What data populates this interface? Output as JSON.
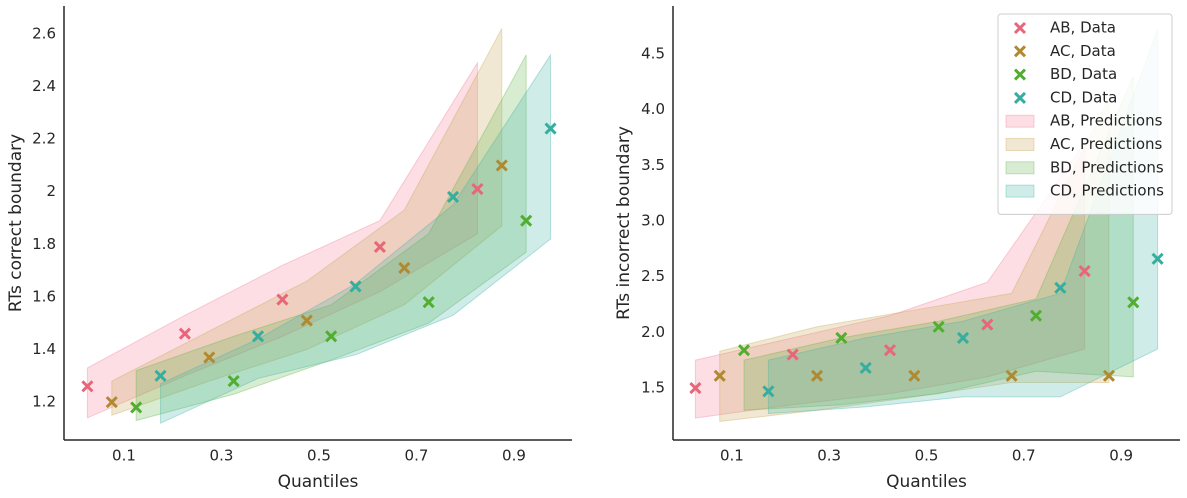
{
  "chart_data": [
    {
      "type": "scatter",
      "xlabel": "Quantiles",
      "ylabel": "RTs correct boundary",
      "xlim": [
        -0.023,
        1.019
      ],
      "ylim": [
        1.056,
        2.706
      ],
      "xticks": [
        0.1,
        0.3,
        0.5,
        0.7,
        0.9
      ],
      "yticks": [
        1.2,
        1.4,
        1.6,
        1.8,
        2.0,
        2.2,
        2.4,
        2.6
      ],
      "series": [
        {
          "color": "#e8667a",
          "x": [
            0.025,
            0.225,
            0.425,
            0.625,
            0.825
          ],
          "values": [
            1.26,
            1.46,
            1.59,
            1.79,
            2.01
          ]
        },
        {
          "color": "#b08a30",
          "x": [
            0.075,
            0.275,
            0.475,
            0.675,
            0.875
          ],
          "values": [
            1.2,
            1.37,
            1.51,
            1.71,
            2.1
          ]
        },
        {
          "color": "#52ae31",
          "x": [
            0.125,
            0.325,
            0.525,
            0.725,
            0.925
          ],
          "values": [
            1.18,
            1.28,
            1.45,
            1.58,
            1.89
          ]
        },
        {
          "color": "#35aea0",
          "x": [
            0.175,
            0.375,
            0.575,
            0.775,
            0.975
          ],
          "values": [
            1.3,
            1.45,
            1.64,
            1.98,
            2.24
          ]
        }
      ],
      "bands": [
        {
          "color": "#f27b95",
          "x": [
            0.025,
            0.225,
            0.425,
            0.625,
            0.825
          ],
          "lower": [
            1.14,
            1.3,
            1.45,
            1.62,
            1.84
          ],
          "upper": [
            1.33,
            1.53,
            1.72,
            1.89,
            2.49
          ]
        },
        {
          "color": "#c7a54f",
          "x": [
            0.075,
            0.275,
            0.475,
            0.675,
            0.875
          ],
          "lower": [
            1.15,
            1.28,
            1.4,
            1.57,
            1.87
          ],
          "upper": [
            1.28,
            1.47,
            1.66,
            1.93,
            2.62
          ]
        },
        {
          "color": "#5fb548",
          "x": [
            0.125,
            0.325,
            0.525,
            0.725,
            0.925
          ],
          "lower": [
            1.13,
            1.23,
            1.36,
            1.5,
            1.77
          ],
          "upper": [
            1.32,
            1.45,
            1.57,
            1.84,
            2.52
          ]
        },
        {
          "color": "#3fb3a6",
          "x": [
            0.175,
            0.375,
            0.575,
            0.775,
            0.975
          ],
          "lower": [
            1.12,
            1.29,
            1.38,
            1.53,
            1.82
          ],
          "upper": [
            1.27,
            1.44,
            1.65,
            1.95,
            2.52
          ]
        }
      ]
    },
    {
      "type": "scatter",
      "xlabel": "Quantiles",
      "ylabel": "RTs incorrect boundary",
      "xlim": [
        -0.021,
        1.021
      ],
      "ylim": [
        1.033,
        4.931
      ],
      "xticks": [
        0.1,
        0.3,
        0.5,
        0.7,
        0.9
      ],
      "yticks": [
        1.5,
        {
          "value": 2,
          "label": "2.0"
        },
        2.5,
        {
          "value": 3,
          "label": "3.0"
        },
        3.5,
        {
          "value": 4,
          "label": "4.0"
        },
        4.5
      ],
      "legend": "upper right",
      "series": [
        {
          "name": "AB, Data",
          "color": "#e8667a",
          "x": [
            0.025,
            0.225,
            0.425,
            0.625,
            0.825
          ],
          "values": [
            1.5,
            1.8,
            1.84,
            2.07,
            2.55
          ]
        },
        {
          "name": "AC, Data",
          "color": "#b08a30",
          "x": [
            0.075,
            0.275,
            0.475,
            0.675,
            0.875
          ],
          "values": [
            1.61,
            1.61,
            1.61,
            1.61,
            1.61
          ]
        },
        {
          "name": "BD, Data",
          "color": "#52ae31",
          "x": [
            0.125,
            0.325,
            0.525,
            0.725,
            0.925
          ],
          "values": [
            1.84,
            1.95,
            2.05,
            2.15,
            2.27
          ]
        },
        {
          "name": "CD, Data",
          "color": "#35aea0",
          "x": [
            0.175,
            0.375,
            0.575,
            0.775,
            0.975
          ],
          "values": [
            1.47,
            1.68,
            1.95,
            2.4,
            2.66
          ]
        }
      ],
      "bands": [
        {
          "name": "AB, Predictions",
          "color": "#f27b95",
          "x": [
            0.025,
            0.225,
            0.425,
            0.625,
            0.825
          ],
          "lower": [
            1.23,
            1.35,
            1.45,
            1.6,
            1.85
          ],
          "upper": [
            1.75,
            1.95,
            2.15,
            2.45,
            3.7
          ]
        },
        {
          "name": "AC, Predictions",
          "color": "#c7a54f",
          "x": [
            0.075,
            0.275,
            0.475,
            0.675,
            0.875
          ],
          "lower": [
            1.2,
            1.3,
            1.42,
            1.55,
            1.55
          ],
          "upper": [
            1.83,
            2.05,
            2.2,
            2.35,
            4.1
          ]
        },
        {
          "name": "BD, Predictions",
          "color": "#5fb548",
          "x": [
            0.125,
            0.325,
            0.525,
            0.725,
            0.925
          ],
          "lower": [
            1.3,
            1.35,
            1.45,
            1.65,
            1.6
          ],
          "upper": [
            1.75,
            1.95,
            2.1,
            2.3,
            4.3
          ]
        },
        {
          "name": "CD, Predictions",
          "color": "#3fb3a6",
          "x": [
            0.175,
            0.375,
            0.575,
            0.775,
            0.975
          ],
          "lower": [
            1.27,
            1.33,
            1.42,
            1.42,
            1.85
          ],
          "upper": [
            1.75,
            1.95,
            2.1,
            2.35,
            4.72
          ]
        }
      ]
    }
  ]
}
